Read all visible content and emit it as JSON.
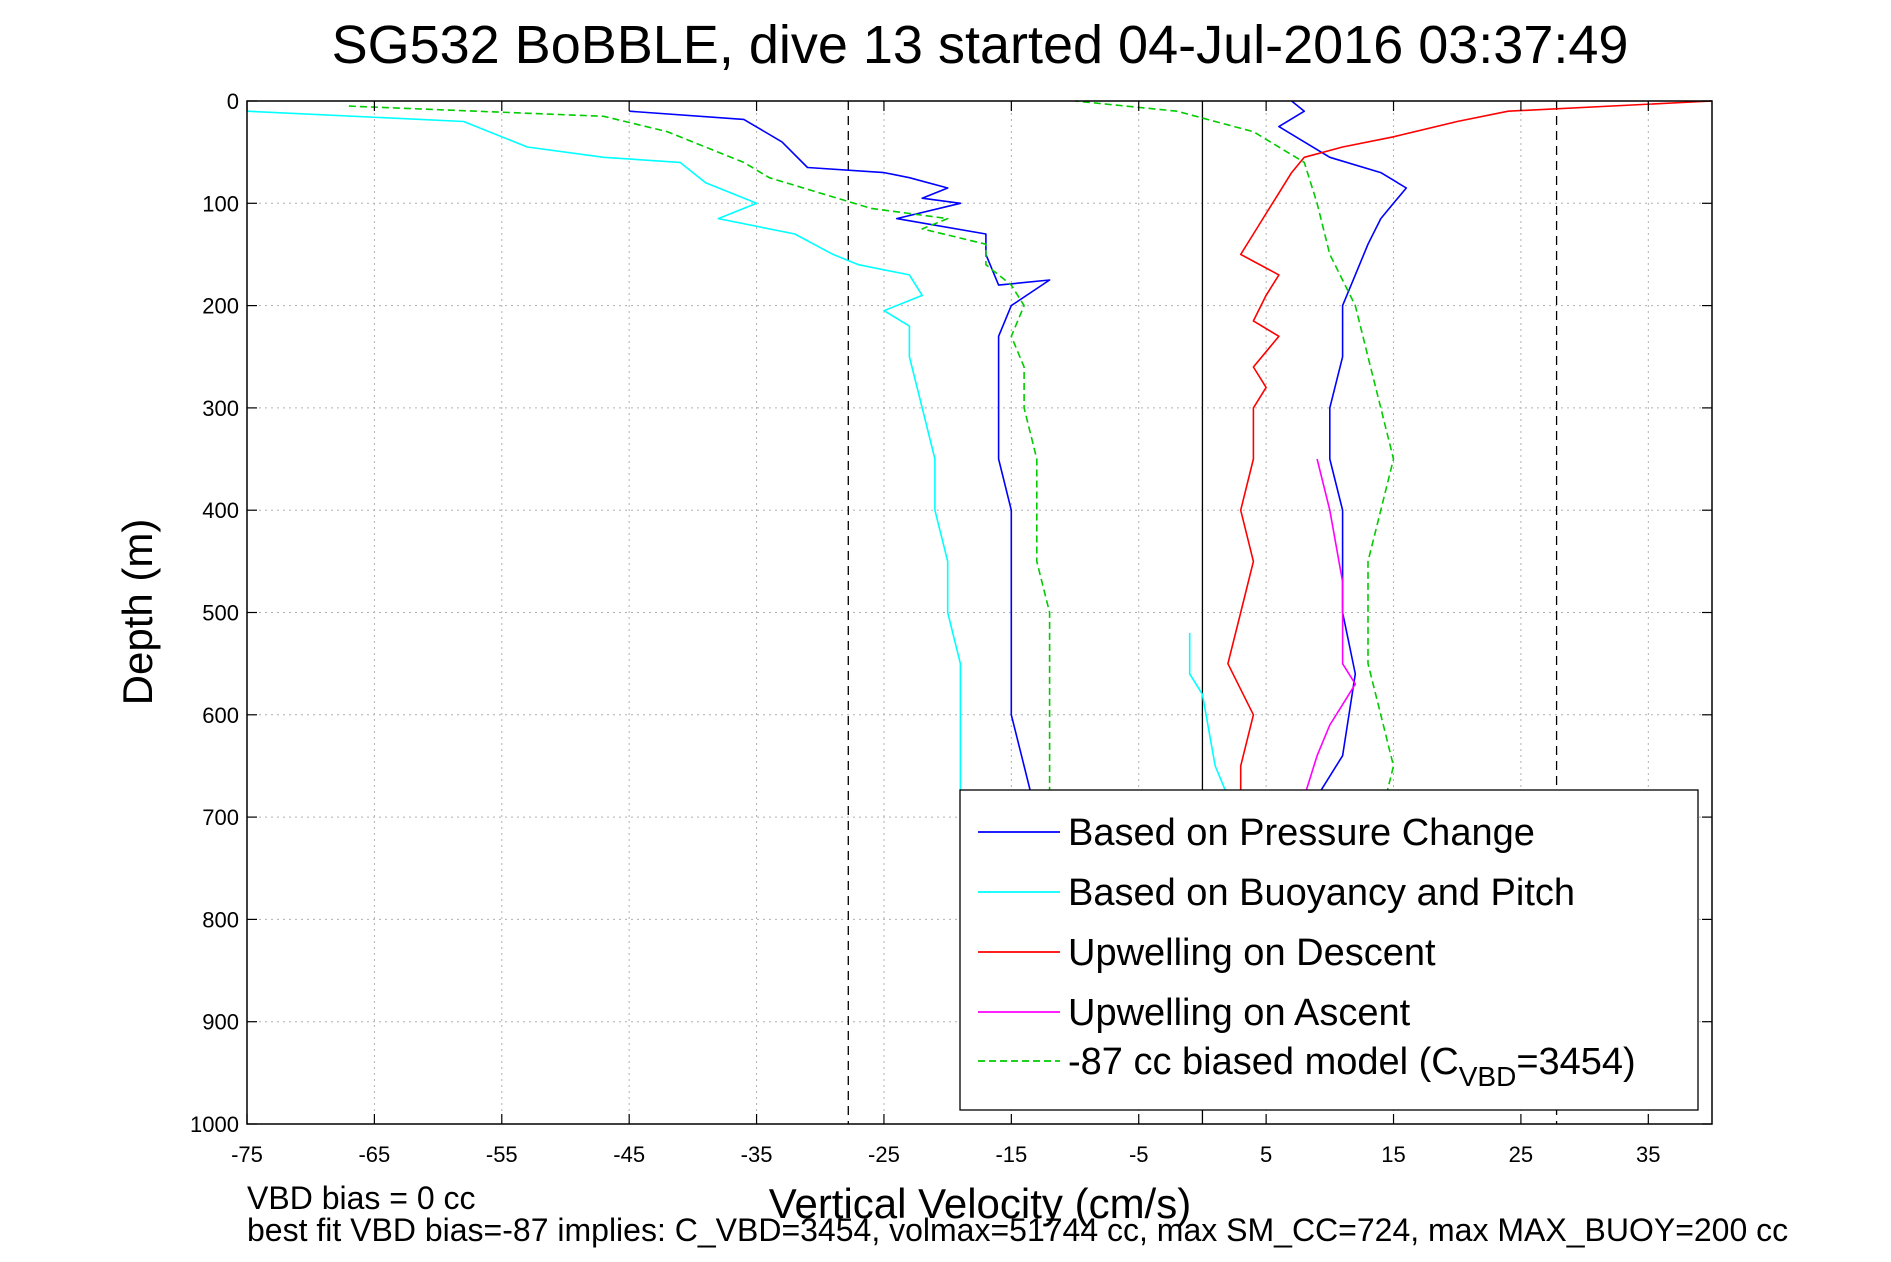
{
  "chart_data": {
    "type": "line",
    "title": "SG532 BoBBLE, dive 13 started 04-Jul-2016 03:37:49",
    "xlabel": "Vertical Velocity (cm/s)",
    "ylabel": "Depth (m)",
    "xlim": [
      -75,
      40
    ],
    "ylim": [
      0,
      1000
    ],
    "y_reversed": true,
    "grid": true,
    "x_ticks": [
      -75,
      -65,
      -55,
      -45,
      -35,
      -25,
      -15,
      -5,
      5,
      15,
      25,
      35
    ],
    "y_ticks": [
      0,
      100,
      200,
      300,
      400,
      500,
      600,
      700,
      800,
      900,
      1000
    ],
    "reference_lines": [
      {
        "x": 0,
        "style": "solid"
      },
      {
        "x": -27.8,
        "style": "dashed"
      },
      {
        "x": 27.8,
        "style": "dashed"
      }
    ],
    "legend_placement": "bottom-right",
    "legend": [
      {
        "label": "Based on Pressure Change",
        "color": "#0000ff",
        "dash": false
      },
      {
        "label": "Based on Buoyancy and Pitch",
        "color": "#00ffff",
        "dash": false
      },
      {
        "label": "Upwelling on Descent",
        "color": "#ff0000",
        "dash": false
      },
      {
        "label": "Upwelling on Ascent",
        "color": "#ff00ff",
        "dash": false
      },
      {
        "label": "-87 cc biased model (C",
        "sub": "VBD",
        "suffix": "=3454)",
        "color": "#00cc00",
        "dash": true
      }
    ],
    "series": [
      {
        "name": "Based on Pressure Change",
        "color": "#0000ff",
        "points": [
          [
            -45,
            10
          ],
          [
            -36,
            18
          ],
          [
            -33,
            40
          ],
          [
            -31,
            65
          ],
          [
            -25,
            70
          ],
          [
            -23,
            75
          ],
          [
            -20,
            85
          ],
          [
            -22,
            95
          ],
          [
            -19,
            100
          ],
          [
            -24,
            115
          ],
          [
            -17,
            130
          ],
          [
            -17,
            150
          ],
          [
            -16,
            180
          ],
          [
            -12,
            175
          ],
          [
            -15,
            200
          ],
          [
            -16,
            230
          ],
          [
            -16,
            280
          ],
          [
            -16,
            350
          ],
          [
            -15,
            400
          ],
          [
            -15,
            500
          ],
          [
            -15,
            600
          ],
          [
            -14,
            650
          ],
          [
            -13,
            700
          ],
          [
            7,
            980
          ],
          [
            8,
            900
          ],
          [
            8,
            800
          ],
          [
            8,
            720
          ],
          [
            9,
            680
          ],
          [
            11,
            640
          ],
          [
            12,
            560
          ],
          [
            11,
            500
          ],
          [
            11,
            460
          ],
          [
            11,
            400
          ],
          [
            10,
            350
          ],
          [
            10,
            300
          ],
          [
            11,
            250
          ],
          [
            11,
            200
          ],
          [
            12,
            170
          ],
          [
            13,
            140
          ],
          [
            14,
            115
          ],
          [
            15,
            100
          ],
          [
            16,
            85
          ],
          [
            14,
            70
          ],
          [
            10,
            55
          ],
          [
            8,
            40
          ],
          [
            6,
            25
          ],
          [
            8,
            10
          ],
          [
            7,
            0
          ]
        ]
      },
      {
        "name": "Based on Buoyancy and Pitch",
        "color": "#00ffff",
        "points": [
          [
            -75,
            10
          ],
          [
            -58,
            20
          ],
          [
            -53,
            45
          ],
          [
            -47,
            55
          ],
          [
            -41,
            60
          ],
          [
            -39,
            80
          ],
          [
            -35,
            100
          ],
          [
            -38,
            115
          ],
          [
            -32,
            130
          ],
          [
            -29,
            150
          ],
          [
            -27,
            160
          ],
          [
            -23,
            170
          ],
          [
            -22,
            190
          ],
          [
            -25,
            205
          ],
          [
            -23,
            220
          ],
          [
            -23,
            250
          ],
          [
            -22,
            300
          ],
          [
            -21,
            350
          ],
          [
            -21,
            400
          ],
          [
            -20,
            450
          ],
          [
            -20,
            500
          ],
          [
            -19,
            550
          ],
          [
            -19,
            600
          ],
          [
            -19,
            650
          ],
          [
            -19,
            700
          ],
          [
            -18,
            750
          ],
          [
            -18,
            800
          ],
          [
            -18,
            850
          ],
          [
            -18,
            900
          ],
          [
            -17,
            950
          ],
          [
            2,
            680
          ],
          [
            1,
            650
          ],
          [
            0,
            580
          ],
          [
            -1,
            560
          ],
          [
            -1,
            520
          ]
        ]
      },
      {
        "name": "Upwelling on Descent",
        "color": "#ff0000",
        "points": [
          [
            40,
            0
          ],
          [
            24,
            10
          ],
          [
            20,
            20
          ],
          [
            15,
            35
          ],
          [
            11,
            45
          ],
          [
            8,
            55
          ],
          [
            7,
            70
          ],
          [
            6,
            90
          ],
          [
            5,
            110
          ],
          [
            4,
            130
          ],
          [
            3,
            150
          ],
          [
            6,
            170
          ],
          [
            5,
            190
          ],
          [
            4,
            215
          ],
          [
            6,
            230
          ],
          [
            4,
            260
          ],
          [
            5,
            280
          ],
          [
            4,
            300
          ],
          [
            4,
            350
          ],
          [
            3,
            400
          ],
          [
            4,
            450
          ],
          [
            3,
            500
          ],
          [
            2,
            550
          ],
          [
            4,
            600
          ],
          [
            3,
            650
          ],
          [
            3,
            700
          ],
          [
            4,
            750
          ]
        ]
      },
      {
        "name": "Upwelling on Ascent",
        "color": "#ff00ff",
        "points": [
          [
            8,
            680
          ],
          [
            9,
            640
          ],
          [
            10,
            610
          ],
          [
            11,
            590
          ],
          [
            12,
            570
          ],
          [
            11,
            550
          ],
          [
            11,
            520
          ],
          [
            11,
            470
          ],
          [
            10,
            400
          ],
          [
            9,
            350
          ]
        ]
      },
      {
        "name": "-87 cc biased model (CVBD=3454)",
        "color": "#00cc00",
        "dash": true,
        "points": [
          [
            -67,
            5
          ],
          [
            -47,
            15
          ],
          [
            -42,
            30
          ],
          [
            -38,
            50
          ],
          [
            -36,
            60
          ],
          [
            -34,
            75
          ],
          [
            -30,
            90
          ],
          [
            -26,
            105
          ],
          [
            -20,
            115
          ],
          [
            -22,
            125
          ],
          [
            -17,
            140
          ],
          [
            -17,
            160
          ],
          [
            -15,
            180
          ],
          [
            -14,
            200
          ],
          [
            -15,
            230
          ],
          [
            -14,
            260
          ],
          [
            -14,
            300
          ],
          [
            -13,
            350
          ],
          [
            -13,
            400
          ],
          [
            -13,
            450
          ],
          [
            -12,
            500
          ],
          [
            -12,
            550
          ],
          [
            -12,
            600
          ],
          [
            -12,
            650
          ],
          [
            -12,
            700
          ],
          [
            8,
            950
          ],
          [
            9,
            900
          ],
          [
            10,
            850
          ],
          [
            11,
            800
          ],
          [
            12,
            750
          ],
          [
            14,
            700
          ],
          [
            15,
            650
          ],
          [
            14,
            600
          ],
          [
            13,
            550
          ],
          [
            13,
            500
          ],
          [
            13,
            450
          ],
          [
            14,
            400
          ],
          [
            15,
            350
          ],
          [
            14,
            300
          ],
          [
            13,
            250
          ],
          [
            12,
            200
          ],
          [
            10,
            150
          ],
          [
            9,
            100
          ],
          [
            8,
            60
          ],
          [
            4,
            30
          ],
          [
            1,
            20
          ],
          [
            -2,
            10
          ],
          [
            -10,
            0
          ]
        ]
      }
    ]
  },
  "footer": {
    "line1": "VBD bias = 0 cc",
    "line2": "best fit VBD bias=-87 implies: C_VBD=3454, volmax=51744 cc, max SM_CC=724, max MAX_BUOY=200 cc"
  }
}
